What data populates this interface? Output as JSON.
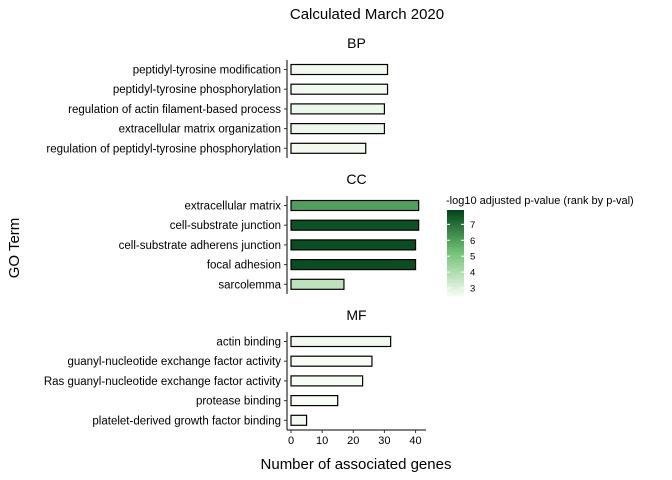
{
  "chart_data": {
    "type": "bar",
    "orientation": "horizontal",
    "title": "Calculated March 2020",
    "xlabel": "Number of associated genes",
    "ylabel": "GO Term",
    "xlim": [
      0,
      43
    ],
    "x_ticks": [
      0,
      10,
      20,
      30,
      40
    ],
    "grid": false,
    "legend_position": "right",
    "legend": {
      "title": "-log10 adjusted p-value (rank by p-val)",
      "range": [
        2.5,
        7.9
      ],
      "ticks": [
        3,
        4,
        5,
        6,
        7
      ],
      "color_low": "#f7fcf5",
      "color_mid": "#74c476",
      "color_high": "#00441b"
    },
    "panels": [
      {
        "name": "BP",
        "terms": [
          {
            "label": "peptidyl-tyrosine modification",
            "genes": 31,
            "neg_log10_padj": 2.6
          },
          {
            "label": "peptidyl-tyrosine phosphorylation",
            "genes": 31,
            "neg_log10_padj": 2.6
          },
          {
            "label": "regulation of actin filament-based process",
            "genes": 30,
            "neg_log10_padj": 2.7
          },
          {
            "label": "extracellular matrix organization",
            "genes": 30,
            "neg_log10_padj": 2.7
          },
          {
            "label": "regulation of peptidyl-tyrosine phosphorylation",
            "genes": 24,
            "neg_log10_padj": 2.6
          }
        ]
      },
      {
        "name": "CC",
        "terms": [
          {
            "label": "extracellular matrix",
            "genes": 41,
            "neg_log10_padj": 6.0
          },
          {
            "label": "cell-substrate junction",
            "genes": 41,
            "neg_log10_padj": 7.6
          },
          {
            "label": "cell-substrate adherens junction",
            "genes": 40,
            "neg_log10_padj": 7.7
          },
          {
            "label": "focal adhesion",
            "genes": 40,
            "neg_log10_padj": 7.7
          },
          {
            "label": "sarcolemma",
            "genes": 17,
            "neg_log10_padj": 3.7
          }
        ]
      },
      {
        "name": "MF",
        "terms": [
          {
            "label": "actin binding",
            "genes": 32,
            "neg_log10_padj": 2.6
          },
          {
            "label": "guanyl-nucleotide exchange factor activity",
            "genes": 26,
            "neg_log10_padj": 2.5
          },
          {
            "label": "Ras guanyl-nucleotide exchange factor activity",
            "genes": 23,
            "neg_log10_padj": 2.5
          },
          {
            "label": "protease binding",
            "genes": 15,
            "neg_log10_padj": 2.5
          },
          {
            "label": "platelet-derived growth factor binding",
            "genes": 5,
            "neg_log10_padj": 2.6
          }
        ]
      }
    ]
  }
}
